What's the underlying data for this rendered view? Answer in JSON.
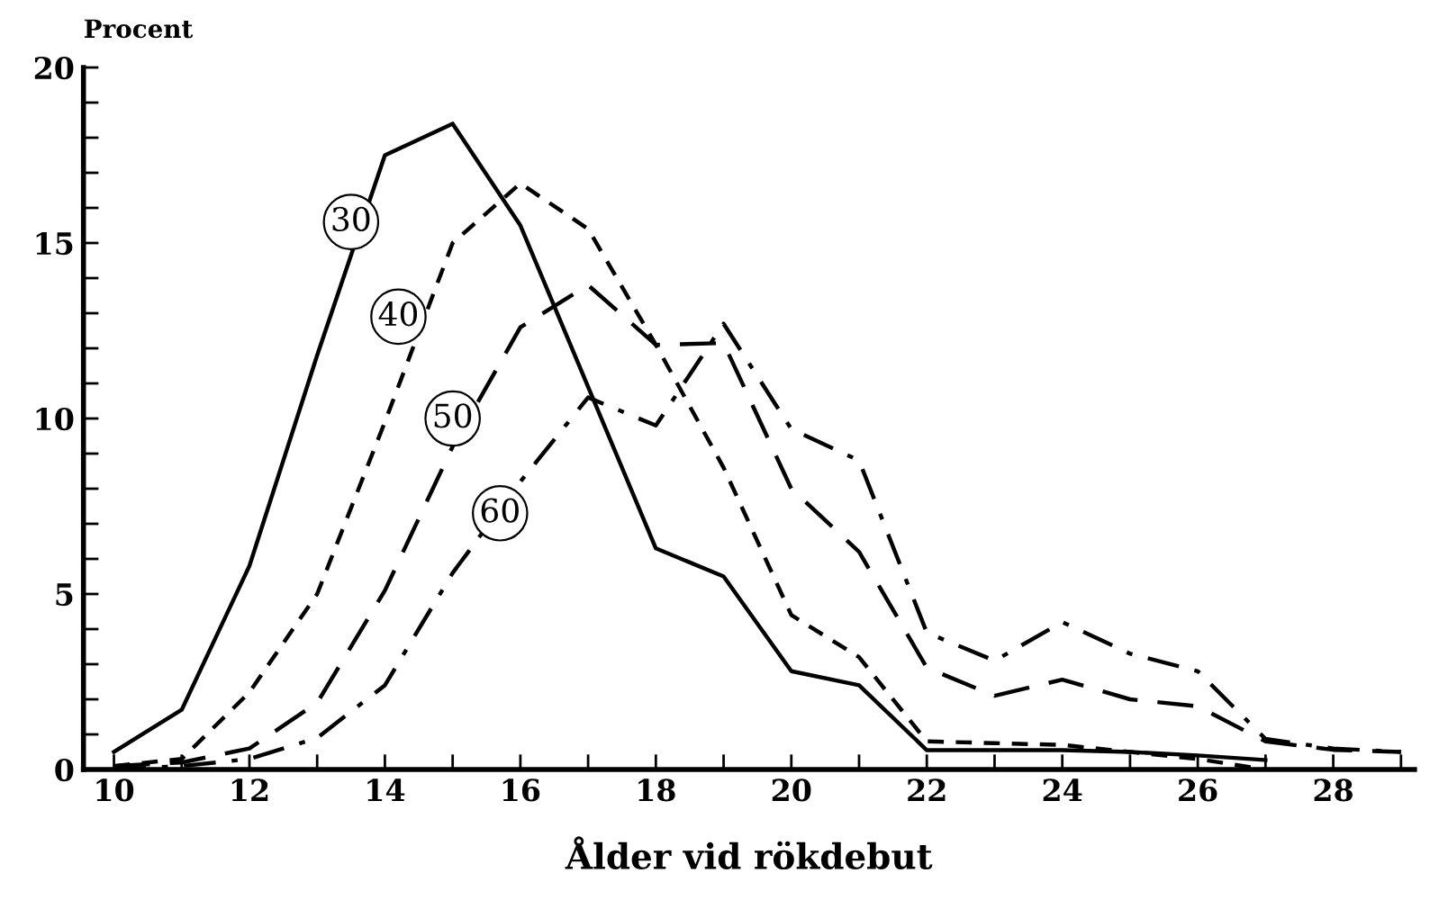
{
  "chart_data": {
    "type": "line",
    "ylabel": "Procent",
    "xlabel": "Ålder vid rökdebut",
    "x": [
      10,
      11,
      12,
      13,
      14,
      15,
      16,
      17,
      18,
      19,
      20,
      21,
      22,
      23,
      24,
      25,
      26,
      27,
      28,
      29
    ],
    "series": [
      {
        "color": "#000000",
        "line_style": "solid",
        "values": [
          0.5,
          1.7,
          5.8,
          11.8,
          17.5,
          18.4,
          15.5,
          10.9,
          6.3,
          5.5,
          2.8,
          2.4,
          0.55,
          0.55,
          0.55,
          0.5,
          0.4,
          0.27,
          null,
          null
        ]
      },
      {
        "color": "#000000",
        "line_style": "dashed",
        "values": [
          0.1,
          0.3,
          2.2,
          5.0,
          9.9,
          15.0,
          16.7,
          15.4,
          12.1,
          8.6,
          4.4,
          3.2,
          0.8,
          0.75,
          0.7,
          0.5,
          0.3,
          0,
          null,
          null
        ]
      },
      {
        "color": "#000000",
        "line_style": "longdash",
        "values": [
          0.1,
          0.2,
          0.6,
          1.9,
          5.1,
          9.2,
          12.6,
          13.8,
          12.1,
          12.15,
          8.0,
          6.2,
          2.9,
          2.1,
          2.56,
          2.0,
          1.8,
          0.8,
          0.56,
          0.5
        ]
      },
      {
        "color": "#000000",
        "line_style": "dashdot",
        "values": [
          0,
          0.1,
          0.3,
          0.9,
          2.4,
          5.6,
          8.2,
          10.6,
          9.8,
          12.7,
          9.7,
          8.8,
          3.9,
          3.1,
          4.2,
          3.3,
          2.8,
          0.87,
          0.6,
          0.5
        ]
      }
    ],
    "annotations": [
      {
        "text": "30",
        "x": 13.5,
        "y": 15.6
      },
      {
        "text": "40",
        "x": 14.2,
        "y": 12.9
      },
      {
        "text": "50",
        "x": 15.0,
        "y": 10.0
      },
      {
        "text": "60",
        "x": 15.7,
        "y": 7.3
      }
    ],
    "xlim": [
      9.55,
      29.2
    ],
    "ylim": [
      0,
      20
    ],
    "xticks": [
      10,
      {
        "value": 11,
        "label": null
      },
      12,
      {
        "value": 13,
        "label": null
      },
      14,
      {
        "value": 15,
        "label": null
      },
      16,
      {
        "value": 17,
        "label": null
      },
      18,
      {
        "value": 19,
        "label": null
      },
      20,
      {
        "value": 21,
        "label": null
      },
      22,
      {
        "value": 23,
        "label": null
      },
      24,
      {
        "value": 25,
        "label": null
      },
      26,
      {
        "value": 27,
        "label": null
      },
      28,
      {
        "value": 29,
        "label": null
      }
    ],
    "yticks": [
      0,
      {
        "value": 1,
        "label": null
      },
      {
        "value": 2,
        "label": null
      },
      {
        "value": 3,
        "label": null
      },
      {
        "value": 4,
        "label": null
      },
      5,
      {
        "value": 6,
        "label": null
      },
      {
        "value": 7,
        "label": null
      },
      {
        "value": 8,
        "label": null
      },
      {
        "value": 9,
        "label": null
      },
      10,
      {
        "value": 11,
        "label": null
      },
      {
        "value": 12,
        "label": null
      },
      {
        "value": 13,
        "label": null
      },
      {
        "value": 14,
        "label": null
      },
      15,
      {
        "value": 16,
        "label": null
      },
      {
        "value": 17,
        "label": null
      },
      {
        "value": 18,
        "label": null
      },
      {
        "value": 19,
        "label": null
      },
      20
    ],
    "grid": false,
    "legend": false
  }
}
